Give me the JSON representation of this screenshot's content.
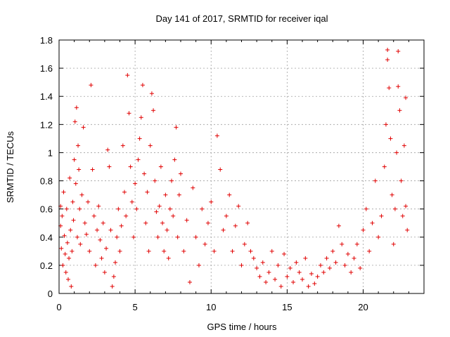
{
  "chart_data": {
    "type": "scatter",
    "title": "Day 141 of 2017, SRMTID for receiver iqal",
    "xlabel": "GPS time / hours",
    "ylabel": "SRMTID / TECUs",
    "xlim": [
      0,
      24
    ],
    "ylim": [
      0,
      1.8
    ],
    "xticks": [
      0,
      5,
      10,
      15,
      20
    ],
    "yticks": [
      0,
      0.2,
      0.4,
      0.6,
      0.8,
      1,
      1.2,
      1.4,
      1.6,
      1.8
    ],
    "ytick_labels": [
      "0",
      "0.2",
      "0.4",
      "0.6",
      "0.8",
      "1",
      "1.2",
      "1.4",
      "1.6",
      "1.8"
    ],
    "grid": true,
    "marker": "+",
    "color": "#e00000",
    "series": [
      {
        "name": "SRMTID",
        "points": [
          [
            0.1,
            0.62
          ],
          [
            0.1,
            0.48
          ],
          [
            0.15,
            0.32
          ],
          [
            0.2,
            0.55
          ],
          [
            0.25,
            0.2
          ],
          [
            0.3,
            0.72
          ],
          [
            0.35,
            0.41
          ],
          [
            0.4,
            0.28
          ],
          [
            0.45,
            0.15
          ],
          [
            0.5,
            0.6
          ],
          [
            0.55,
            0.36
          ],
          [
            0.6,
            0.1
          ],
          [
            0.65,
            0.25
          ],
          [
            0.7,
            0.82
          ],
          [
            0.75,
            0.45
          ],
          [
            0.8,
            0.05
          ],
          [
            0.85,
            0.3
          ],
          [
            0.9,
            0.65
          ],
          [
            0.95,
            0.52
          ],
          [
            1.0,
            0.95
          ],
          [
            1.05,
            1.22
          ],
          [
            1.1,
            0.78
          ],
          [
            1.15,
            1.32
          ],
          [
            1.2,
            0.4
          ],
          [
            1.25,
            1.05
          ],
          [
            1.3,
            0.88
          ],
          [
            1.35,
            0.6
          ],
          [
            1.4,
            0.35
          ],
          [
            1.5,
            0.7
          ],
          [
            1.6,
            1.18
          ],
          [
            1.7,
            0.5
          ],
          [
            1.8,
            0.42
          ],
          [
            1.9,
            0.65
          ],
          [
            2.0,
            0.3
          ],
          [
            2.1,
            1.48
          ],
          [
            2.2,
            0.88
          ],
          [
            2.3,
            0.55
          ],
          [
            2.4,
            0.2
          ],
          [
            2.5,
            0.45
          ],
          [
            2.6,
            0.62
          ],
          [
            2.7,
            0.38
          ],
          [
            2.8,
            0.25
          ],
          [
            2.9,
            0.5
          ],
          [
            3.0,
            0.15
          ],
          [
            3.1,
            0.32
          ],
          [
            3.2,
            1.02
          ],
          [
            3.3,
            0.9
          ],
          [
            3.4,
            0.45
          ],
          [
            3.5,
            0.05
          ],
          [
            3.6,
            0.12
          ],
          [
            3.7,
            0.22
          ],
          [
            3.8,
            0.4
          ],
          [
            3.9,
            0.6
          ],
          [
            4.0,
            0.3
          ],
          [
            4.1,
            0.48
          ],
          [
            4.2,
            1.05
          ],
          [
            4.3,
            0.72
          ],
          [
            4.4,
            0.55
          ],
          [
            4.5,
            1.55
          ],
          [
            4.6,
            1.28
          ],
          [
            4.7,
            0.9
          ],
          [
            4.8,
            0.65
          ],
          [
            4.9,
            0.4
          ],
          [
            5.0,
            0.78
          ],
          [
            5.1,
            0.6
          ],
          [
            5.2,
            0.95
          ],
          [
            5.3,
            1.1
          ],
          [
            5.4,
            1.25
          ],
          [
            5.5,
            1.48
          ],
          [
            5.6,
            0.85
          ],
          [
            5.7,
            0.5
          ],
          [
            5.8,
            0.72
          ],
          [
            5.9,
            0.3
          ],
          [
            6.0,
            1.05
          ],
          [
            6.1,
            1.42
          ],
          [
            6.2,
            1.3
          ],
          [
            6.3,
            0.8
          ],
          [
            6.4,
            0.58
          ],
          [
            6.5,
            0.4
          ],
          [
            6.6,
            0.62
          ],
          [
            6.7,
            0.9
          ],
          [
            6.8,
            0.5
          ],
          [
            6.9,
            0.3
          ],
          [
            7.0,
            0.7
          ],
          [
            7.1,
            0.45
          ],
          [
            7.2,
            0.25
          ],
          [
            7.3,
            0.6
          ],
          [
            7.4,
            0.8
          ],
          [
            7.5,
            0.55
          ],
          [
            7.6,
            0.95
          ],
          [
            7.7,
            1.18
          ],
          [
            7.8,
            0.4
          ],
          [
            7.9,
            0.7
          ],
          [
            8.0,
            0.85
          ],
          [
            8.2,
            0.3
          ],
          [
            8.4,
            0.52
          ],
          [
            8.6,
            0.08
          ],
          [
            8.8,
            0.75
          ],
          [
            9.0,
            0.4
          ],
          [
            9.2,
            0.2
          ],
          [
            9.4,
            0.6
          ],
          [
            9.6,
            0.35
          ],
          [
            9.8,
            0.5
          ],
          [
            10.0,
            0.65
          ],
          [
            10.2,
            0.3
          ],
          [
            10.4,
            1.12
          ],
          [
            10.6,
            0.88
          ],
          [
            10.8,
            0.45
          ],
          [
            11.0,
            0.55
          ],
          [
            11.2,
            0.7
          ],
          [
            11.4,
            0.3
          ],
          [
            11.6,
            0.48
          ],
          [
            11.8,
            0.62
          ],
          [
            12.0,
            0.2
          ],
          [
            12.2,
            0.35
          ],
          [
            12.4,
            0.5
          ],
          [
            12.6,
            0.3
          ],
          [
            12.8,
            0.25
          ],
          [
            13.0,
            0.18
          ],
          [
            13.2,
            0.12
          ],
          [
            13.4,
            0.22
          ],
          [
            13.6,
            0.08
          ],
          [
            13.8,
            0.15
          ],
          [
            14.0,
            0.3
          ],
          [
            14.2,
            0.1
          ],
          [
            14.4,
            0.2
          ],
          [
            14.6,
            0.05
          ],
          [
            14.8,
            0.28
          ],
          [
            15.0,
            0.12
          ],
          [
            15.2,
            0.18
          ],
          [
            15.4,
            0.08
          ],
          [
            15.6,
            0.22
          ],
          [
            15.8,
            0.15
          ],
          [
            16.0,
            0.1
          ],
          [
            16.2,
            0.25
          ],
          [
            16.4,
            0.05
          ],
          [
            16.6,
            0.14
          ],
          [
            16.8,
            0.07
          ],
          [
            17.0,
            0.12
          ],
          [
            17.2,
            0.2
          ],
          [
            17.4,
            0.15
          ],
          [
            17.6,
            0.25
          ],
          [
            17.8,
            0.18
          ],
          [
            18.0,
            0.3
          ],
          [
            18.2,
            0.22
          ],
          [
            18.4,
            0.48
          ],
          [
            18.6,
            0.35
          ],
          [
            18.8,
            0.2
          ],
          [
            19.0,
            0.28
          ],
          [
            19.2,
            0.15
          ],
          [
            19.4,
            0.25
          ],
          [
            19.6,
            0.35
          ],
          [
            19.8,
            0.18
          ],
          [
            20.0,
            0.45
          ],
          [
            20.2,
            0.6
          ],
          [
            20.4,
            0.3
          ],
          [
            20.6,
            0.5
          ],
          [
            20.8,
            0.8
          ],
          [
            21.0,
            0.4
          ],
          [
            21.2,
            0.55
          ],
          [
            21.4,
            0.9
          ],
          [
            21.5,
            1.2
          ],
          [
            21.6,
            1.73
          ],
          [
            21.6,
            1.66
          ],
          [
            21.7,
            1.46
          ],
          [
            21.8,
            1.1
          ],
          [
            21.9,
            0.7
          ],
          [
            22.0,
            0.35
          ],
          [
            22.1,
            0.6
          ],
          [
            22.2,
            1.0
          ],
          [
            22.3,
            1.72
          ],
          [
            22.3,
            1.47
          ],
          [
            22.4,
            1.3
          ],
          [
            22.5,
            0.8
          ],
          [
            22.6,
            0.55
          ],
          [
            22.7,
            1.05
          ],
          [
            22.8,
            1.39
          ],
          [
            22.8,
            0.62
          ],
          [
            22.9,
            0.45
          ]
        ]
      }
    ]
  }
}
